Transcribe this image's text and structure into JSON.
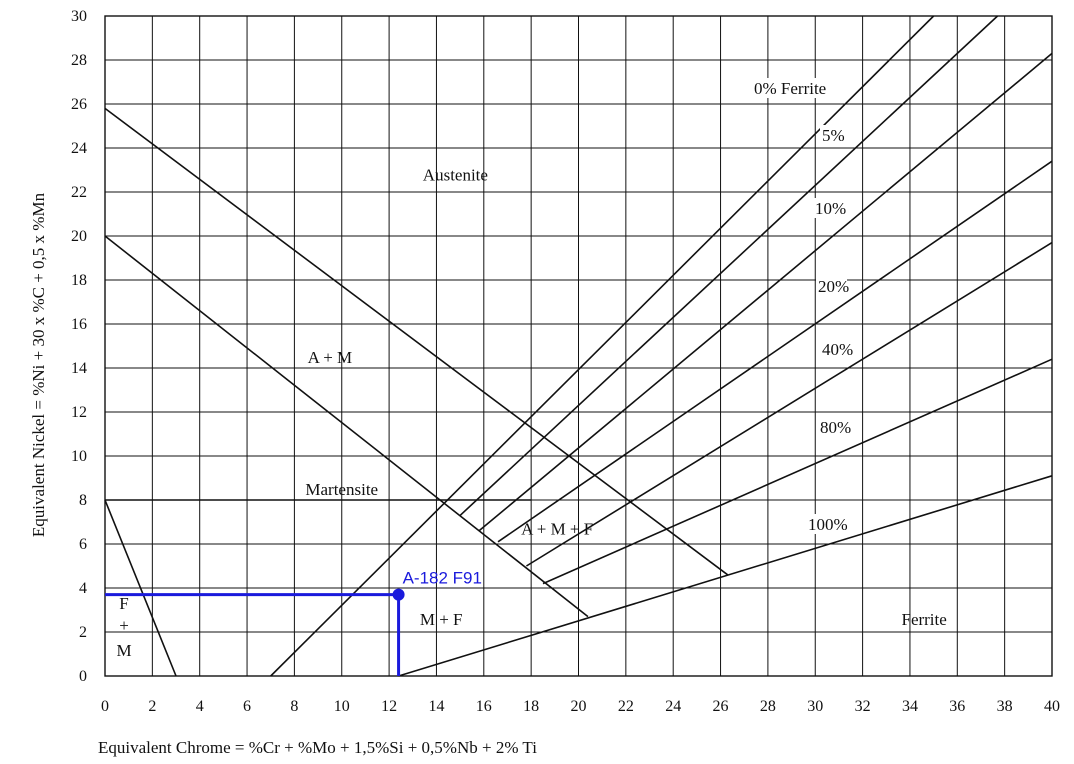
{
  "chart_data": {
    "type": "line",
    "title": "",
    "xlabel": "Equivalent Chrome = %Cr + %Mo + 1,5%Si + 0,5%Nb + 2%   Ti",
    "ylabel": "Equivalent Nickel = %Ni + 30 x %C + 0,5 x %Mn",
    "xlim": [
      0,
      40
    ],
    "ylim": [
      0,
      30
    ],
    "grid": true,
    "x_ticks": [
      "0",
      "2",
      "4",
      "6",
      "8",
      "10",
      "12",
      "14",
      "16",
      "18",
      "20",
      "22",
      "24",
      "26",
      "28",
      "30",
      "32",
      "34",
      "36",
      "38",
      "40"
    ],
    "y_ticks": [
      "0",
      "2",
      "4",
      "6",
      "8",
      "10",
      "12",
      "14",
      "16",
      "18",
      "20",
      "22",
      "24",
      "26",
      "28",
      "30"
    ],
    "boundaries": [
      {
        "id": "martensite-fm-boundary",
        "points": [
          [
            0,
            8
          ],
          [
            3,
            0
          ]
        ]
      },
      {
        "id": "austenite-am-boundary",
        "points": [
          [
            0,
            25.8
          ],
          [
            26.3,
            4.6
          ]
        ]
      },
      {
        "id": "martensite-upper-boundary",
        "points": [
          [
            0,
            20
          ],
          [
            20.4,
            2.7
          ]
        ]
      },
      {
        "id": "martensite-top-boundary",
        "points": [
          [
            0,
            8
          ],
          [
            18,
            8
          ]
        ]
      }
    ],
    "ferrite_lines": [
      {
        "label": "0% Ferrite",
        "points": [
          [
            7,
            0
          ],
          [
            35,
            30
          ]
        ]
      },
      {
        "label": "5%",
        "points": [
          [
            15,
            7.3
          ],
          [
            37.7,
            30
          ]
        ]
      },
      {
        "label": "10%",
        "points": [
          [
            15.8,
            6.6
          ],
          [
            40,
            28.3
          ]
        ]
      },
      {
        "label": "20%",
        "points": [
          [
            16.6,
            6.1
          ],
          [
            40,
            23.4
          ]
        ]
      },
      {
        "label": "40%",
        "points": [
          [
            17.8,
            5
          ],
          [
            40,
            19.7
          ]
        ]
      },
      {
        "label": "80%",
        "points": [
          [
            18.5,
            4.2
          ],
          [
            40,
            14.4
          ]
        ]
      },
      {
        "label": "100%",
        "points": [
          [
            12.4,
            0
          ],
          [
            40,
            9.1
          ]
        ]
      }
    ],
    "regions": [
      {
        "label": "Austenite",
        "x": 14.8,
        "y": 22.8
      },
      {
        "label": "A + M",
        "x": 9.5,
        "y": 14.5
      },
      {
        "label": "Martensite",
        "x": 10,
        "y": 8.5
      },
      {
        "label": "A + M + F",
        "x": 19.1,
        "y": 6.7
      },
      {
        "label": "M + F",
        "x": 14.2,
        "y": 2.6
      },
      {
        "label": "Ferrite",
        "x": 34.6,
        "y": 2.6
      }
    ],
    "region_fm": [
      "F",
      "+",
      "M"
    ],
    "point": {
      "label": "A-182 F91",
      "x": 12.4,
      "y": 3.7,
      "color": "#1a1adc"
    }
  }
}
